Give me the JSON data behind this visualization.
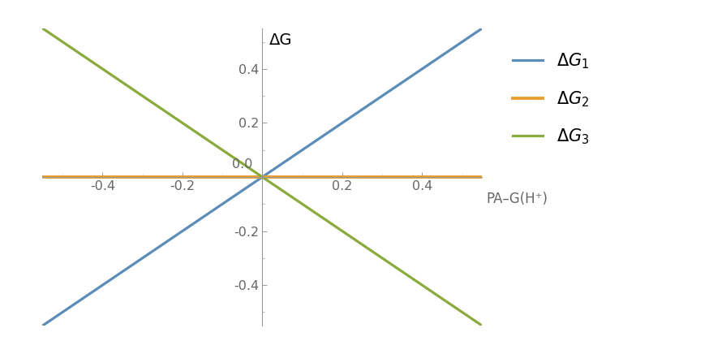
{
  "xlim": [
    -0.55,
    0.55
  ],
  "ylim": [
    -0.55,
    0.55
  ],
  "x_ticks": [
    -0.4,
    -0.2,
    0.2,
    0.4
  ],
  "y_ticks": [
    -0.4,
    -0.2,
    0.2,
    0.4
  ],
  "lines": [
    {
      "label": "\\Delta G_1",
      "slope": 1.0,
      "intercept": 0.0,
      "color": "#5b8db8",
      "lw": 2.3
    },
    {
      "label": "\\Delta G_2",
      "slope": 0.0,
      "intercept": 0.0,
      "color": "#e8a030",
      "lw": 2.8
    },
    {
      "label": "\\Delta G_3",
      "slope": -1.0,
      "intercept": 0.0,
      "color": "#8aab3c",
      "lw": 2.3
    }
  ],
  "xlabel": "PA–G(H⁺)",
  "ylabel": "ΔG",
  "origin_label": "0.0",
  "background_color": "#ffffff",
  "legend_fontsize": 15,
  "tick_fontsize": 11.5,
  "label_fontsize": 13,
  "tick_color": "#666666",
  "spine_color": "#999999",
  "spine_lw": 0.8
}
